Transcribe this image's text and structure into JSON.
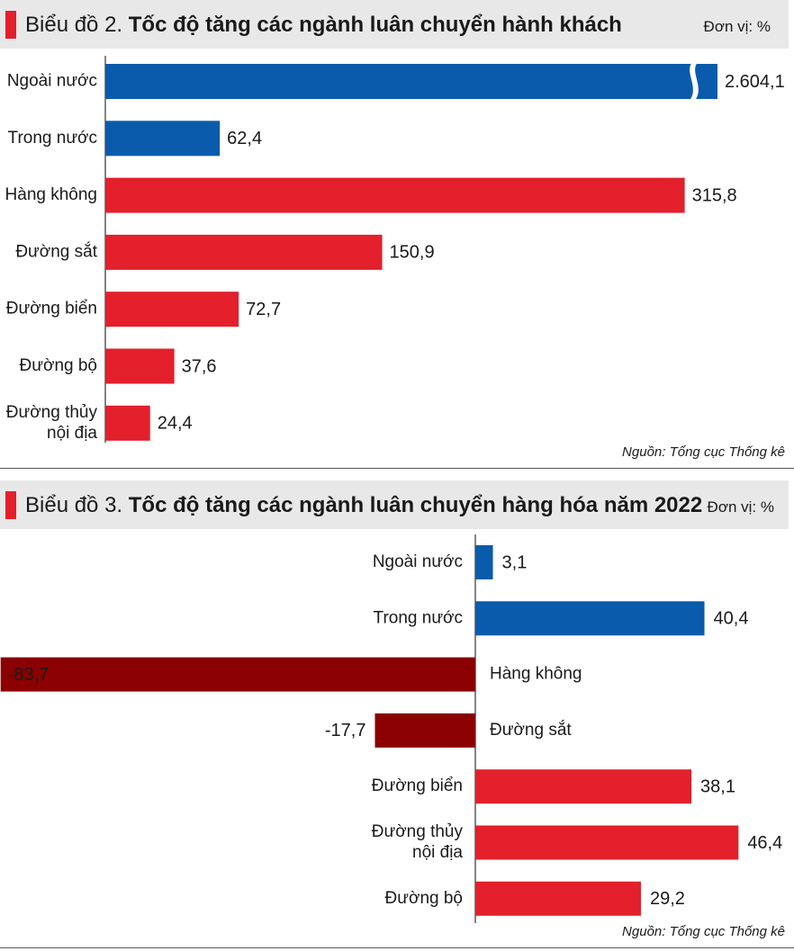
{
  "charts": [
    {
      "header": {
        "prefix": "Biểu đồ 2.",
        "title": "Tốc độ tăng các ngành luân chuyển hành khách",
        "unit": "Đơn vị: %"
      },
      "source": "Nguồn: Tổng cục Thống kê"
    },
    {
      "header": {
        "prefix": "Biểu đồ 3.",
        "title": "Tốc độ tăng các ngành luân chuyển hàng hóa năm 2022",
        "unit": "Đơn vị: %"
      },
      "source": "Nguồn: Tổng cục Thống kê"
    }
  ],
  "colors": {
    "blue": "#0a5bab",
    "red": "#e3202b",
    "darkred": "#8b0000",
    "accent": "#e3202b"
  },
  "chart_data": [
    {
      "type": "bar",
      "orientation": "horizontal",
      "title": "Biểu đồ 2. Tốc độ tăng các ngành luân chuyển hành khách",
      "unit": "Đơn vị: %",
      "categories": [
        "Ngoài nước",
        "Trong nước",
        "Hàng không",
        "Đường sắt",
        "Đường biển",
        "Đường bộ",
        "Đường thủy nội địa"
      ],
      "values": [
        2604.1,
        62.4,
        315.8,
        150.9,
        72.7,
        37.6,
        24.4
      ],
      "value_labels": [
        "2.604,1",
        "62,4",
        "315,8",
        "150,9",
        "72,7",
        "37,6",
        "24,4"
      ],
      "bar_colors": [
        "blue",
        "blue",
        "red",
        "red",
        "red",
        "red",
        "red"
      ],
      "axis_break": "Ngoài nước",
      "source": "Nguồn: Tổng cục Thống kê"
    },
    {
      "type": "bar",
      "orientation": "horizontal",
      "title": "Biểu đồ 3. Tốc độ tăng các ngành luân chuyển hàng hóa năm 2022",
      "unit": "Đơn vị: %",
      "categories": [
        "Ngoài nước",
        "Trong nước",
        "Hàng không",
        "Đường sắt",
        "Đường biển",
        "Đường thủy nội địa",
        "Đường bộ"
      ],
      "values": [
        3.1,
        40.4,
        -83.7,
        -17.7,
        38.1,
        46.4,
        29.2
      ],
      "value_labels": [
        "3,1",
        "40,4",
        "-83,7",
        "-17,7",
        "38,1",
        "46,4",
        "29,2"
      ],
      "bar_colors": [
        "blue",
        "blue",
        "darkred",
        "darkred",
        "red",
        "red",
        "red"
      ],
      "source": "Nguồn: Tổng cục Thống kê"
    }
  ]
}
